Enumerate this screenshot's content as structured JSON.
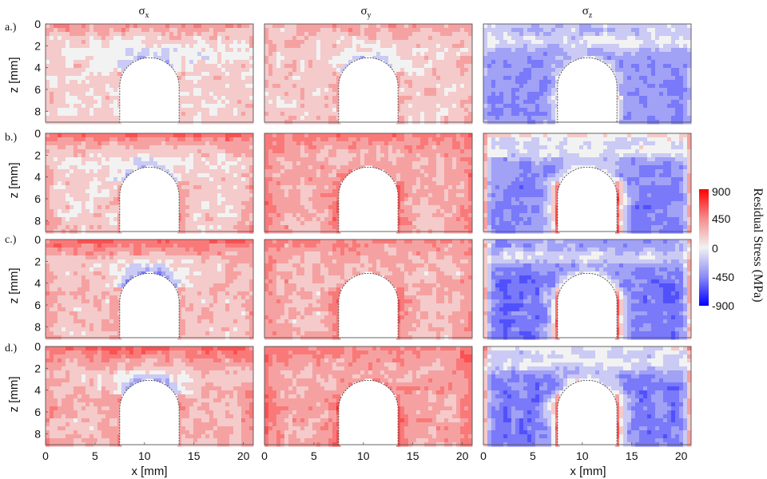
{
  "chart_data": {
    "type": "heatmap",
    "column_titles": [
      {
        "symbol": "σ",
        "sub": "x"
      },
      {
        "symbol": "σ",
        "sub": "y"
      },
      {
        "symbol": "σ",
        "sub": "z"
      }
    ],
    "row_labels": [
      "a.)",
      "b.)",
      "c.)",
      "d.)"
    ],
    "xlabel": "x [mm]",
    "ylabel": "z [mm]",
    "x_ticks": [
      0,
      5,
      10,
      15,
      20
    ],
    "y_ticks": [
      0,
      2,
      4,
      6,
      8
    ],
    "xlim": [
      0,
      21
    ],
    "ylim": [
      0,
      9
    ],
    "y_inverted": true,
    "cutout": {
      "x_left": 7.5,
      "x_right": 13.5,
      "z_top": 3.1,
      "z_shoulder": 5.7,
      "z_bottom": 9
    },
    "colorbar": {
      "label": "Residual Stress (MPa)",
      "ticks": [
        900,
        450,
        0,
        -450,
        -900
      ],
      "range": [
        -900,
        900
      ],
      "colors": {
        "max": "#ff0000",
        "zero": "#f2f2f2",
        "min": "#0000ff"
      }
    },
    "panels": [
      {
        "row": 0,
        "col": 0,
        "surface_top": 380,
        "surface_side": 180,
        "bulk": 100,
        "cutout_edge": 150,
        "arch_top": -200
      },
      {
        "row": 0,
        "col": 1,
        "surface_top": 330,
        "surface_side": 200,
        "bulk": 140,
        "cutout_edge": 260,
        "arch_top": -150
      },
      {
        "row": 0,
        "col": 2,
        "surface_top": -150,
        "surface_side": -120,
        "bulk": -380,
        "cutout_edge": 0,
        "arch_top": -50
      },
      {
        "row": 1,
        "col": 0,
        "surface_top": 560,
        "surface_side": 380,
        "bulk": 110,
        "cutout_edge": 280,
        "arch_top": -170
      },
      {
        "row": 1,
        "col": 1,
        "surface_top": 470,
        "surface_side": 500,
        "bulk": 230,
        "cutout_edge": 560,
        "arch_top": 350
      },
      {
        "row": 1,
        "col": 2,
        "surface_top": 160,
        "surface_side": 720,
        "bulk": -420,
        "cutout_edge": 600,
        "arch_top": 80
      },
      {
        "row": 2,
        "col": 0,
        "surface_top": 600,
        "surface_side": 350,
        "bulk": 170,
        "cutout_edge": 280,
        "arch_top": -330
      },
      {
        "row": 2,
        "col": 1,
        "surface_top": 430,
        "surface_side": 420,
        "bulk": 200,
        "cutout_edge": 540,
        "arch_top": 330
      },
      {
        "row": 2,
        "col": 2,
        "surface_top": -300,
        "surface_side": 720,
        "bulk": -470,
        "cutout_edge": 540,
        "arch_top": 50
      },
      {
        "row": 3,
        "col": 0,
        "surface_top": 600,
        "surface_side": 380,
        "bulk": 200,
        "cutout_edge": 330,
        "arch_top": -330
      },
      {
        "row": 3,
        "col": 1,
        "surface_top": 430,
        "surface_side": 560,
        "bulk": 260,
        "cutout_edge": 620,
        "arch_top": 420
      },
      {
        "row": 3,
        "col": 2,
        "surface_top": 60,
        "surface_side": 720,
        "bulk": -450,
        "cutout_edge": 560,
        "arch_top": 80
      }
    ]
  }
}
